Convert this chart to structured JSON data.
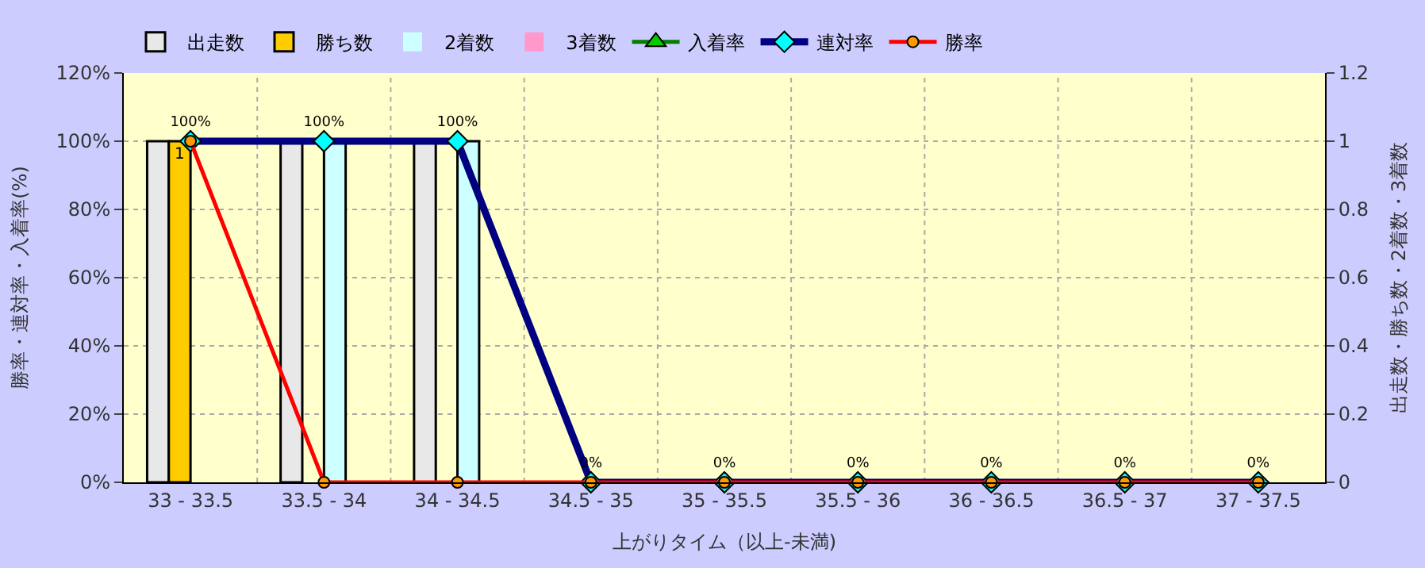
{
  "chart_data": {
    "type": "bar",
    "xlabel": "上がりタイム（以上-未満)",
    "ylabel": "勝率・連対率・入着率(%)",
    "y2label": "出走数・勝ち数・2着数・3着数",
    "categories": [
      "33 - 33.5",
      "33.5 - 34",
      "34 - 34.5",
      "34.5 - 35",
      "35 - 35.5",
      "35.5 - 36",
      "36 - 36.5",
      "36.5 - 37",
      "37 - 37.5"
    ],
    "series": [
      {
        "name": "出走数",
        "axis": "y2",
        "color": "#e8e8e8",
        "values": [
          1,
          1,
          1,
          0,
          0,
          0,
          0,
          0,
          0
        ]
      },
      {
        "name": "勝ち数",
        "axis": "y2",
        "color": "#ffcc00",
        "values": [
          1,
          0,
          0,
          0,
          0,
          0,
          0,
          0,
          0
        ],
        "value_labels": [
          "1",
          null,
          null,
          null,
          null,
          null,
          null,
          null,
          null
        ]
      },
      {
        "name": "2着数",
        "axis": "y2",
        "color": "#ccffff",
        "values": [
          0,
          1,
          1,
          0,
          0,
          0,
          0,
          0,
          0
        ]
      },
      {
        "name": "3着数",
        "axis": "y2",
        "color": "#ff99cc",
        "values": [
          0,
          0,
          0,
          0,
          0,
          0,
          0,
          0,
          0
        ]
      },
      {
        "name": "入着率",
        "type": "line",
        "color": "#008000",
        "marker": "triangle",
        "values": [
          null,
          null,
          null,
          null,
          null,
          null,
          null,
          null,
          null
        ]
      },
      {
        "name": "連対率",
        "type": "line",
        "color": "#000080",
        "marker": "diamond",
        "values": [
          100,
          100,
          100,
          0,
          0,
          0,
          0,
          0,
          0
        ],
        "value_labels": [
          "100%",
          "100%",
          "100%",
          "0%",
          "0%",
          "0%",
          "0%",
          "0%",
          "0%"
        ]
      },
      {
        "name": "勝率",
        "type": "line",
        "color": "#ff0000",
        "marker": "circle",
        "values": [
          100,
          0,
          0,
          0,
          0,
          0,
          0,
          0,
          0
        ]
      }
    ],
    "ylim": [
      0,
      120
    ],
    "yticks": [
      {
        "value": 0,
        "label": "0%"
      },
      {
        "value": 20,
        "label": "20%"
      },
      {
        "value": 40,
        "label": "40%"
      },
      {
        "value": 60,
        "label": "60%"
      },
      {
        "value": 80,
        "label": "80%"
      },
      {
        "value": 100,
        "label": "100%"
      },
      {
        "value": 120,
        "label": "120%"
      }
    ],
    "y2lim": [
      0,
      1.2
    ],
    "y2ticks": [
      0,
      {
        "value": 0.2,
        "label": "0.2"
      },
      {
        "value": 0.4,
        "label": "0.4"
      },
      {
        "value": 0.6,
        "label": "0.6"
      },
      {
        "value": 0.8,
        "label": "0.8"
      },
      1,
      {
        "value": 1.2,
        "label": "1.2"
      }
    ],
    "grid": true,
    "legend": "top"
  }
}
